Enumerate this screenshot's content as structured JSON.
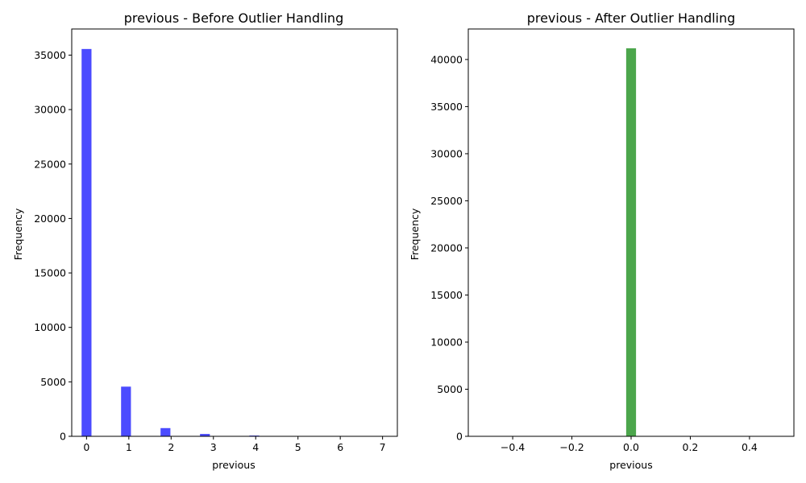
{
  "chart_data": [
    {
      "type": "bar",
      "title": "previous - Before Outlier Handling",
      "xlabel": "previous",
      "ylabel": "Frequency",
      "xlim": [
        -0.35,
        7.35
      ],
      "ylim": [
        0,
        37400
      ],
      "xticks": [
        0,
        1,
        2,
        3,
        4,
        5,
        6,
        7
      ],
      "xtick_labels": [
        "0",
        "1",
        "2",
        "3",
        "4",
        "5",
        "6",
        "7"
      ],
      "yticks": [
        0,
        5000,
        10000,
        15000,
        20000,
        25000,
        30000,
        35000
      ],
      "ytick_labels": [
        "0",
        "5000",
        "10000",
        "15000",
        "20000",
        "25000",
        "30000",
        "35000"
      ],
      "bin_width": 0.2333,
      "x": [
        0,
        0.9333,
        1.8667,
        2.8,
        3.9667,
        4.9,
        5.8333,
        7.0
      ],
      "values": [
        35563,
        4561,
        754,
        216,
        70,
        18,
        5,
        1
      ],
      "color": "#4b4bff",
      "grid": false
    },
    {
      "type": "bar",
      "title": "previous - After Outlier Handling",
      "xlabel": "previous",
      "ylabel": "Frequency",
      "xlim": [
        -0.55,
        0.55
      ],
      "ylim": [
        0,
        43240
      ],
      "xticks": [
        -0.4,
        -0.2,
        0.0,
        0.2,
        0.4
      ],
      "xtick_labels": [
        "−0.4",
        "−0.2",
        "0.0",
        "0.2",
        "0.4"
      ],
      "yticks": [
        0,
        5000,
        10000,
        15000,
        20000,
        25000,
        30000,
        35000,
        40000
      ],
      "ytick_labels": [
        "0",
        "5000",
        "10000",
        "15000",
        "20000",
        "25000",
        "30000",
        "35000",
        "40000"
      ],
      "bin_width": 0.0333,
      "x": [
        0.0
      ],
      "values": [
        41188
      ],
      "color": "#4ca64c",
      "grid": false
    }
  ]
}
